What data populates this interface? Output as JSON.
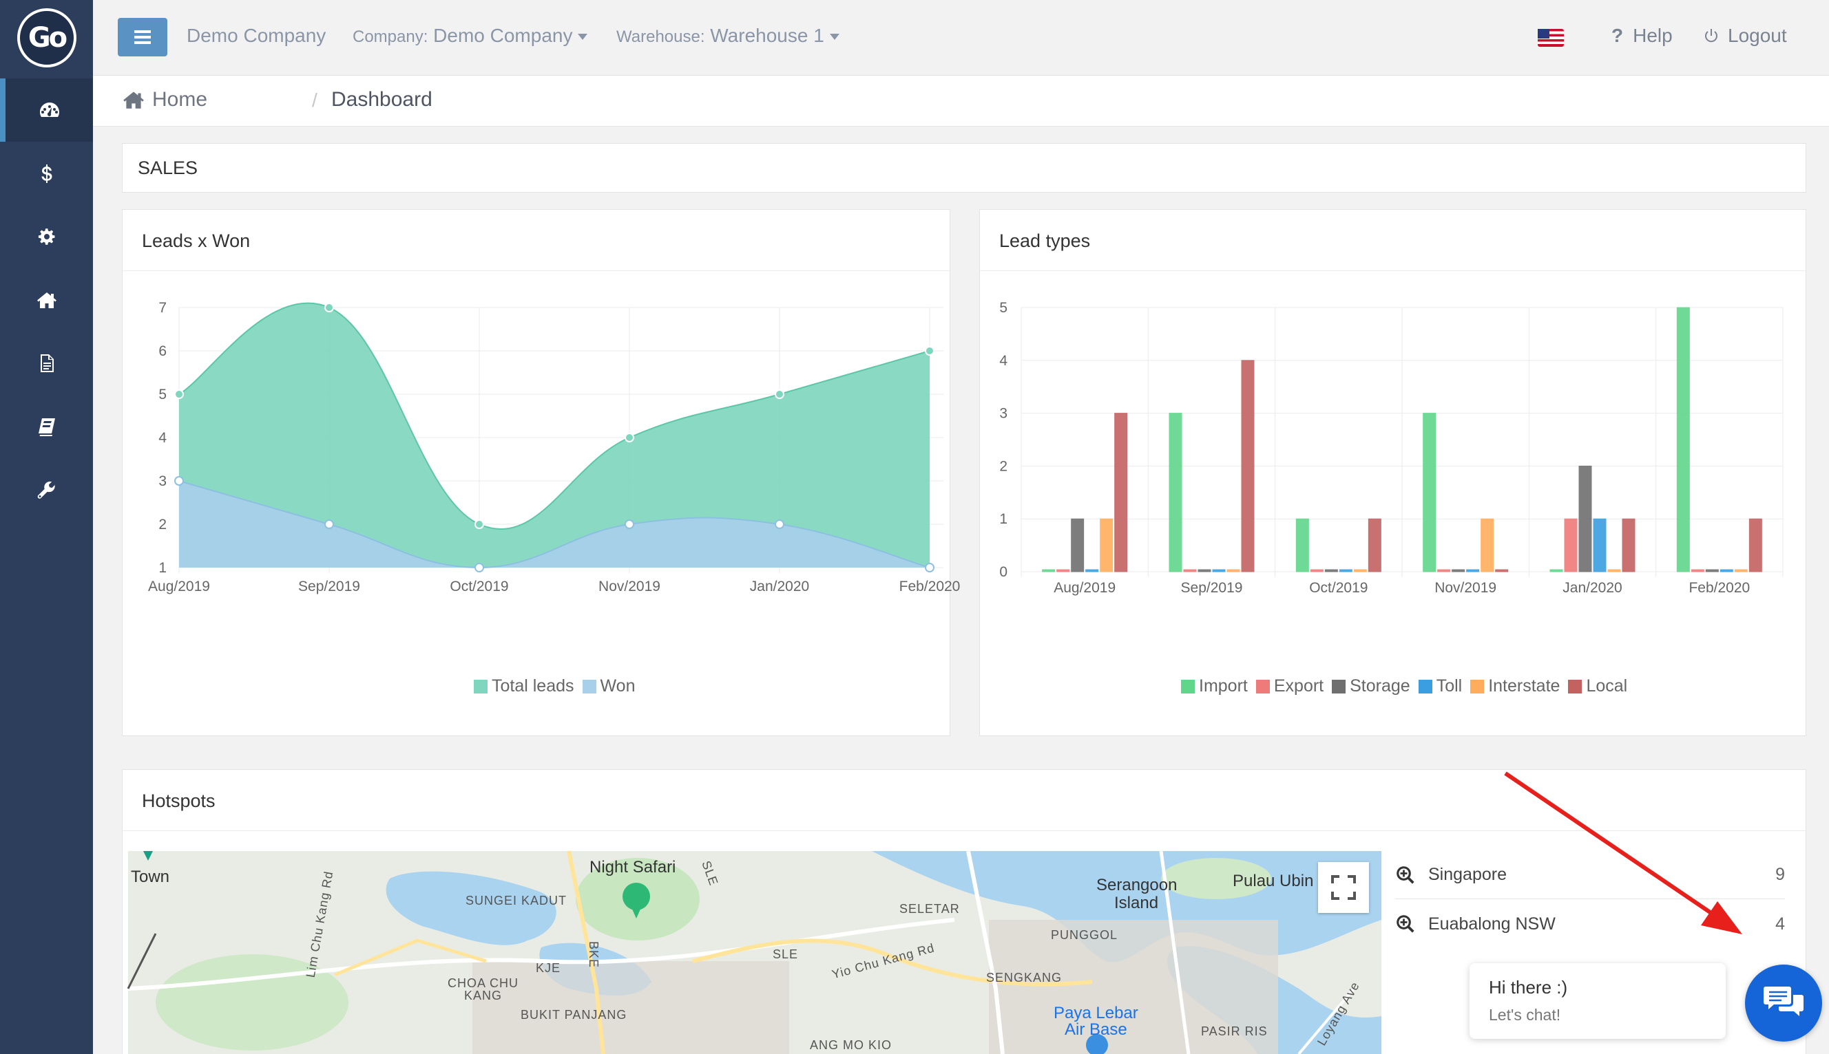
{
  "logo": {
    "text": "Go"
  },
  "sidebar": {
    "items": [
      {
        "icon": "dashboard-icon",
        "active": true
      },
      {
        "icon": "dollar-icon",
        "active": false
      },
      {
        "icon": "gear-icon",
        "active": false
      },
      {
        "icon": "home-icon",
        "active": false
      },
      {
        "icon": "document-icon",
        "active": false
      },
      {
        "icon": "book-icon",
        "active": false
      },
      {
        "icon": "wrench-icon",
        "active": false
      }
    ]
  },
  "topbar": {
    "company_name": "Demo Company",
    "company_label": "Company:",
    "company_value": "Demo Company",
    "warehouse_label": "Warehouse:",
    "warehouse_value": "Warehouse 1",
    "help": "Help",
    "logout": "Logout"
  },
  "breadcrumb": {
    "home": "Home",
    "separator": "/",
    "current": "Dashboard"
  },
  "sales": {
    "title": "SALES"
  },
  "chart_data": [
    {
      "type": "area",
      "title": "Leads x Won",
      "categories": [
        "Aug/2019",
        "Sep/2019",
        "Oct/2019",
        "Nov/2019",
        "Jan/2020",
        "Feb/2020"
      ],
      "series": [
        {
          "name": "Total leads",
          "color": "#7dd6bd",
          "values": [
            5,
            7,
            2,
            4,
            5,
            6
          ]
        },
        {
          "name": "Won",
          "color": "#a8d0ea",
          "values": [
            3,
            2,
            1,
            2,
            2,
            1
          ]
        }
      ],
      "ylim": [
        1,
        7
      ],
      "yticks": [
        "1",
        "2",
        "3",
        "4",
        "5",
        "6",
        "7"
      ],
      "grid": true,
      "legend": "bottom"
    },
    {
      "type": "bar",
      "title": "Lead types",
      "categories": [
        "Aug/2019",
        "Sep/2019",
        "Oct/2019",
        "Nov/2019",
        "Jan/2020",
        "Feb/2020"
      ],
      "series": [
        {
          "name": "Import",
          "color": "#5fd68a",
          "values": [
            0,
            3,
            1,
            3,
            0,
            5
          ]
        },
        {
          "name": "Export",
          "color": "#ef7a7a",
          "values": [
            0,
            0,
            0,
            0,
            1,
            0
          ]
        },
        {
          "name": "Storage",
          "color": "#6f6f6f",
          "values": [
            1,
            0,
            0,
            0,
            2,
            0
          ]
        },
        {
          "name": "Toll",
          "color": "#3a9ee0",
          "values": [
            0,
            0,
            0,
            0,
            1,
            0
          ]
        },
        {
          "name": "Interstate",
          "color": "#ffad5c",
          "values": [
            1,
            0,
            0,
            1,
            0,
            0
          ]
        },
        {
          "name": "Local",
          "color": "#c46262",
          "values": [
            3,
            4,
            1,
            0,
            1,
            1
          ]
        }
      ],
      "ylim": [
        0,
        5
      ],
      "yticks": [
        "0",
        "1",
        "2",
        "3",
        "4",
        "5"
      ],
      "grid": true,
      "legend": "bottom"
    }
  ],
  "hotspots": {
    "title": "Hotspots",
    "items": [
      {
        "name": "Singapore",
        "count": "9"
      },
      {
        "name": "Euabalong NSW",
        "count": "4"
      }
    ],
    "map_labels": {
      "town": "Town",
      "night_safari": "Night Safari",
      "sungei_kadut": "SUNGEI KADUT",
      "seletar": "SELETAR",
      "serangoon": "Serangoon",
      "island": "Island",
      "pulau_ubin": "Pulau Ubin",
      "punggol": "PUNGGOL",
      "choa_chu": "CHOA CHU",
      "kang": "KANG",
      "bukit_panjang": "BUKIT PANJANG",
      "sengkang": "SENGKANG",
      "paya_lebar": "Paya Lebar",
      "air_base": "Air Base",
      "pasir_ris": "PASIR RIS",
      "ang_mo_kio": "ANG MO KIO",
      "kje": "KJE",
      "bke": "BKE",
      "sle": "SLE",
      "sle2": "SLE",
      "yio_chu_kang": "Yio Chu Kang Rd",
      "lim_chu_kang": "Lim Chu Kang Rd",
      "loyang_ave": "Loyang Ave"
    }
  },
  "chat": {
    "greeting": "Hi there :)",
    "cta": "Let's chat!"
  }
}
